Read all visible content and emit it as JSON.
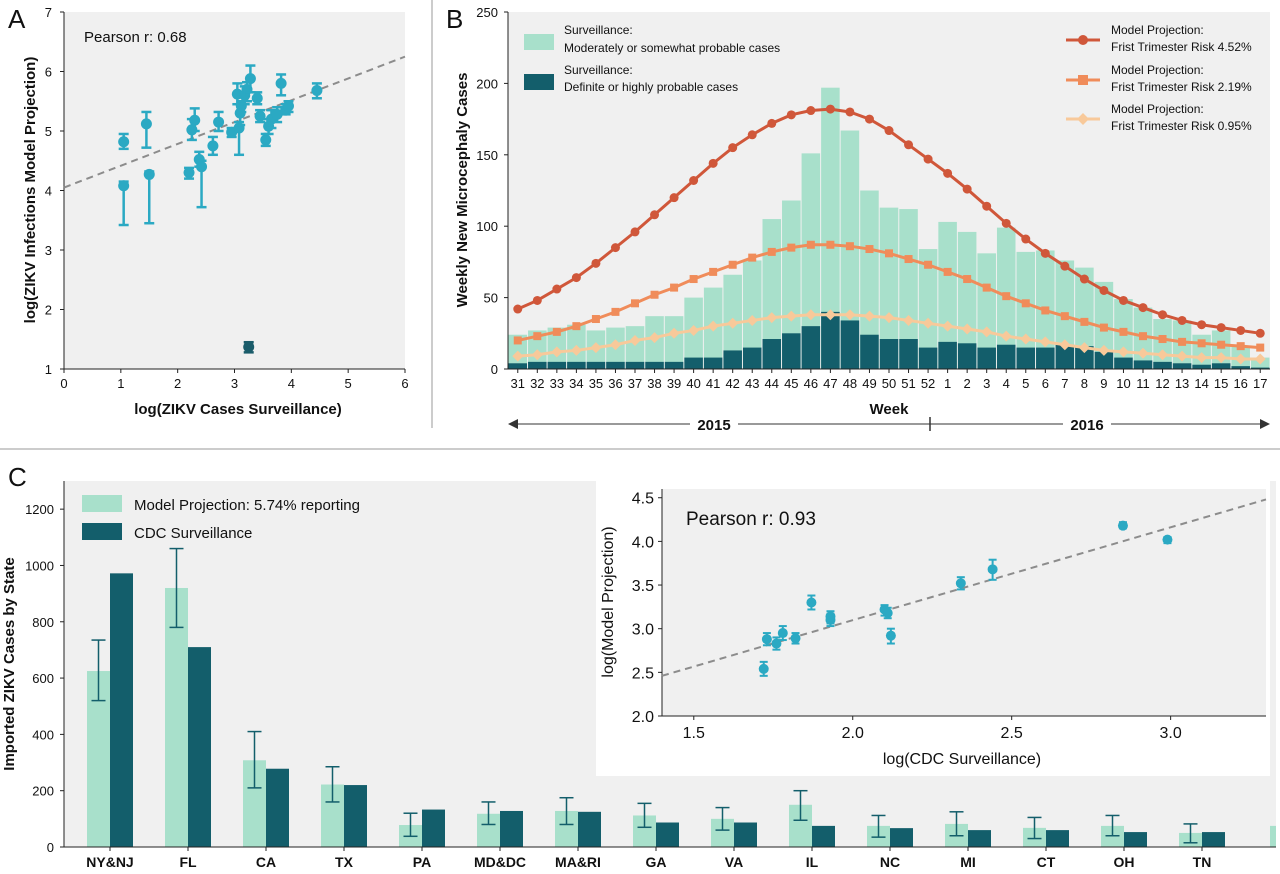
{
  "colors": {
    "plot_bg": "#f0f0f0",
    "teal_point": "#2ba9c3",
    "dark_point": "#1a5c6a",
    "light_green": "#a8e0cb",
    "dark_teal": "#135e6b",
    "proj_452": "#d0573a",
    "proj_219": "#f08c5a",
    "proj_095": "#f8c99a",
    "fit_line": "#8c8c8c"
  },
  "chart_data": [
    {
      "panel": "A",
      "type": "scatter",
      "annotation": "Pearson r: 0.68",
      "xlabel": "log(ZIKV Cases Surveillance)",
      "ylabel": "log(ZIKV Infections Model Projection)",
      "xlim": [
        0,
        6
      ],
      "ylim": [
        1,
        7
      ],
      "xticks": [
        0,
        1,
        2,
        3,
        4,
        5,
        6
      ],
      "yticks": [
        1,
        2,
        3,
        4,
        5,
        6,
        7
      ],
      "fit_line": {
        "x": [
          0,
          6
        ],
        "y": [
          4.05,
          6.25
        ]
      },
      "points": [
        {
          "x": 1.05,
          "y": 4.82,
          "lo": 4.7,
          "hi": 4.95
        },
        {
          "x": 1.05,
          "y": 4.08,
          "lo": 3.42,
          "hi": 4.15
        },
        {
          "x": 1.45,
          "y": 5.12,
          "lo": 4.72,
          "hi": 5.32
        },
        {
          "x": 1.5,
          "y": 4.27,
          "lo": 3.45,
          "hi": 4.32
        },
        {
          "x": 2.2,
          "y": 4.3,
          "lo": 4.2,
          "hi": 4.38
        },
        {
          "x": 2.25,
          "y": 5.02,
          "lo": 4.85,
          "hi": 5.2
        },
        {
          "x": 2.3,
          "y": 5.18,
          "lo": 5.0,
          "hi": 5.38
        },
        {
          "x": 2.38,
          "y": 4.52,
          "lo": 4.4,
          "hi": 4.65
        },
        {
          "x": 2.42,
          "y": 4.4,
          "lo": 3.72,
          "hi": 4.5
        },
        {
          "x": 2.62,
          "y": 4.75,
          "lo": 4.6,
          "hi": 4.9
        },
        {
          "x": 2.72,
          "y": 5.15,
          "lo": 5.0,
          "hi": 5.32
        },
        {
          "x": 2.95,
          "y": 4.98,
          "lo": 4.9,
          "hi": 5.05
        },
        {
          "x": 3.05,
          "y": 5.62,
          "lo": 5.45,
          "hi": 5.8
        },
        {
          "x": 3.08,
          "y": 5.05,
          "lo": 4.6,
          "hi": 5.15
        },
        {
          "x": 3.1,
          "y": 5.3,
          "lo": 5.1,
          "hi": 5.45
        },
        {
          "x": 3.12,
          "y": 5.42,
          "lo": 5.32,
          "hi": 5.5
        },
        {
          "x": 3.18,
          "y": 5.6,
          "lo": 5.45,
          "hi": 5.75
        },
        {
          "x": 3.22,
          "y": 5.7,
          "lo": 5.5,
          "hi": 5.82
        },
        {
          "x": 3.28,
          "y": 5.88,
          "lo": 5.65,
          "hi": 6.1
        },
        {
          "x": 3.4,
          "y": 5.55,
          "lo": 5.45,
          "hi": 5.65
        },
        {
          "x": 3.45,
          "y": 5.25,
          "lo": 5.15,
          "hi": 5.35
        },
        {
          "x": 3.55,
          "y": 4.85,
          "lo": 4.75,
          "hi": 4.95
        },
        {
          "x": 3.6,
          "y": 5.08,
          "lo": 4.95,
          "hi": 5.2
        },
        {
          "x": 3.65,
          "y": 5.2,
          "lo": 5.05,
          "hi": 5.35
        },
        {
          "x": 3.75,
          "y": 5.28,
          "lo": 5.15,
          "hi": 5.4
        },
        {
          "x": 3.82,
          "y": 5.8,
          "lo": 5.6,
          "hi": 5.95
        },
        {
          "x": 3.9,
          "y": 5.35,
          "lo": 5.28,
          "hi": 5.45
        },
        {
          "x": 3.95,
          "y": 5.42,
          "lo": 5.32,
          "hi": 5.5
        },
        {
          "x": 4.45,
          "y": 5.68,
          "lo": 5.55,
          "hi": 5.8
        },
        {
          "x": 3.25,
          "y": 1.37,
          "lo": 1.28,
          "hi": 1.45,
          "dark": true
        }
      ]
    },
    {
      "panel": "B",
      "type": "bar",
      "xlabel": "Week",
      "ylabel": "Weekly New Microcephaly Cases",
      "ylim": [
        0,
        250
      ],
      "yticks": [
        0,
        50,
        100,
        150,
        200,
        250
      ],
      "weeks": [
        "31",
        "32",
        "33",
        "34",
        "35",
        "36",
        "37",
        "38",
        "39",
        "40",
        "41",
        "42",
        "43",
        "44",
        "45",
        "46",
        "47",
        "48",
        "49",
        "50",
        "51",
        "52",
        "1",
        "2",
        "3",
        "4",
        "5",
        "6",
        "7",
        "8",
        "9",
        "10",
        "11",
        "12",
        "13",
        "14",
        "15",
        "16",
        "17"
      ],
      "years": [
        "2015",
        "2016"
      ],
      "legend_surveillance": [
        {
          "name": "Surveillance:",
          "name2": "Moderately or somewhat probable cases"
        },
        {
          "name": "Surveillance:",
          "name2": "Definite or highly probable cases"
        }
      ],
      "legend_projection": [
        {
          "name": "Model Projection:",
          "name2": "Frist Trimester Risk 4.52%"
        },
        {
          "name": "Model Projection:",
          "name2": "Frist Trimester Risk 2.19%"
        },
        {
          "name": "Model Projection:",
          "name2": "Frist Trimester Risk 0.95%"
        }
      ],
      "total_cases": [
        24,
        27,
        29,
        31,
        27,
        29,
        30,
        37,
        37,
        50,
        57,
        66,
        76,
        105,
        118,
        151,
        197,
        167,
        125,
        113,
        112,
        84,
        103,
        96,
        81,
        99,
        82,
        83,
        76,
        71,
        61,
        49,
        43,
        35,
        34,
        24,
        27,
        16,
        8
      ],
      "definite_cases": [
        4,
        5,
        5,
        5,
        5,
        5,
        5,
        5,
        5,
        8,
        8,
        13,
        15,
        21,
        25,
        30,
        40,
        34,
        24,
        21,
        21,
        15,
        19,
        18,
        15,
        17,
        15,
        15,
        17,
        16,
        12,
        8,
        6,
        5,
        4,
        3,
        4,
        2,
        1
      ],
      "proj_452": [
        42,
        48,
        56,
        64,
        74,
        85,
        96,
        108,
        120,
        132,
        144,
        155,
        164,
        172,
        178,
        181,
        182,
        180,
        175,
        167,
        157,
        147,
        137,
        126,
        114,
        102,
        91,
        81,
        72,
        63,
        55,
        48,
        43,
        38,
        34,
        31,
        29,
        27,
        25
      ],
      "proj_219": [
        20,
        23,
        26,
        30,
        35,
        40,
        46,
        52,
        57,
        63,
        68,
        73,
        78,
        82,
        85,
        87,
        87,
        86,
        84,
        81,
        77,
        73,
        68,
        63,
        57,
        51,
        46,
        41,
        37,
        33,
        29,
        26,
        23,
        21,
        19,
        18,
        17,
        16,
        15
      ],
      "proj_095": [
        9,
        10,
        12,
        13,
        15,
        17,
        20,
        22,
        25,
        27,
        30,
        32,
        34,
        36,
        37,
        38,
        38,
        38,
        37,
        36,
        34,
        32,
        30,
        28,
        26,
        23,
        21,
        19,
        17,
        15,
        13,
        12,
        11,
        10,
        9,
        8,
        8,
        7,
        7
      ]
    },
    {
      "panel": "C",
      "type": "bar",
      "ylabel": "Imported ZIKV Cases by State",
      "ylim": [
        0,
        1300
      ],
      "yticks": [
        0,
        200,
        400,
        600,
        800,
        1000,
        1200
      ],
      "categories": [
        "NY&NJ",
        "FL",
        "CA",
        "TX",
        "PA",
        "MD&DC",
        "MA&RI",
        "GA",
        "VA",
        "IL",
        "NC",
        "MI",
        "CT",
        "OH",
        "TN"
      ],
      "series": [
        {
          "name": "Model Projection: 5.74% reporting",
          "values": [
            625,
            920,
            308,
            222,
            78,
            118,
            128,
            112,
            100,
            150,
            75,
            82,
            68,
            75,
            50
          ],
          "err_lo": [
            520,
            780,
            210,
            160,
            38,
            80,
            80,
            70,
            60,
            95,
            35,
            40,
            30,
            40,
            15
          ],
          "err_hi": [
            735,
            1060,
            410,
            285,
            120,
            160,
            175,
            155,
            140,
            200,
            112,
            125,
            105,
            112,
            82
          ]
        },
        {
          "name": "CDC Surveillance",
          "values": [
            972,
            710,
            278,
            220,
            133,
            128,
            125,
            87,
            87,
            75,
            67,
            60,
            60,
            53,
            53
          ]
        }
      ]
    },
    {
      "panel": "C-inset",
      "type": "scatter",
      "annotation": "Pearson r: 0.93",
      "xlabel": "log(CDC Surveillance)",
      "ylabel": "log(Model Projection)",
      "xlim": [
        1.4,
        3.3
      ],
      "ylim": [
        2.0,
        4.6
      ],
      "xticks": [
        "1.5",
        "2.0",
        "2.5",
        "3.0"
      ],
      "yticks": [
        "2.0",
        "2.5",
        "3.0",
        "3.5",
        "4.0",
        "4.5"
      ],
      "fit_line": {
        "x": [
          1.4,
          3.3
        ],
        "y": [
          2.46,
          4.48
        ]
      },
      "points": [
        {
          "x": 1.72,
          "y": 2.54,
          "lo": 2.46,
          "hi": 2.62
        },
        {
          "x": 1.73,
          "y": 2.88,
          "lo": 2.81,
          "hi": 2.95
        },
        {
          "x": 1.76,
          "y": 2.83,
          "lo": 2.76,
          "hi": 2.9
        },
        {
          "x": 1.78,
          "y": 2.95,
          "lo": 2.87,
          "hi": 3.03
        },
        {
          "x": 1.82,
          "y": 2.89,
          "lo": 2.83,
          "hi": 2.95
        },
        {
          "x": 1.87,
          "y": 3.3,
          "lo": 3.22,
          "hi": 3.38
        },
        {
          "x": 1.93,
          "y": 3.1,
          "lo": 3.03,
          "hi": 3.17
        },
        {
          "x": 1.93,
          "y": 3.14,
          "lo": 3.06,
          "hi": 3.2
        },
        {
          "x": 2.1,
          "y": 3.22,
          "lo": 3.15,
          "hi": 3.27
        },
        {
          "x": 2.11,
          "y": 3.18,
          "lo": 3.12,
          "hi": 3.24
        },
        {
          "x": 2.12,
          "y": 2.92,
          "lo": 2.83,
          "hi": 3.0
        },
        {
          "x": 2.34,
          "y": 3.52,
          "lo": 3.45,
          "hi": 3.59
        },
        {
          "x": 2.44,
          "y": 3.68,
          "lo": 3.56,
          "hi": 3.79
        },
        {
          "x": 2.85,
          "y": 4.18,
          "lo": 4.15,
          "hi": 4.22
        },
        {
          "x": 2.99,
          "y": 4.02,
          "lo": 3.98,
          "hi": 4.05
        }
      ]
    }
  ],
  "panels": {
    "a": "A",
    "b": "B",
    "c": "C"
  }
}
